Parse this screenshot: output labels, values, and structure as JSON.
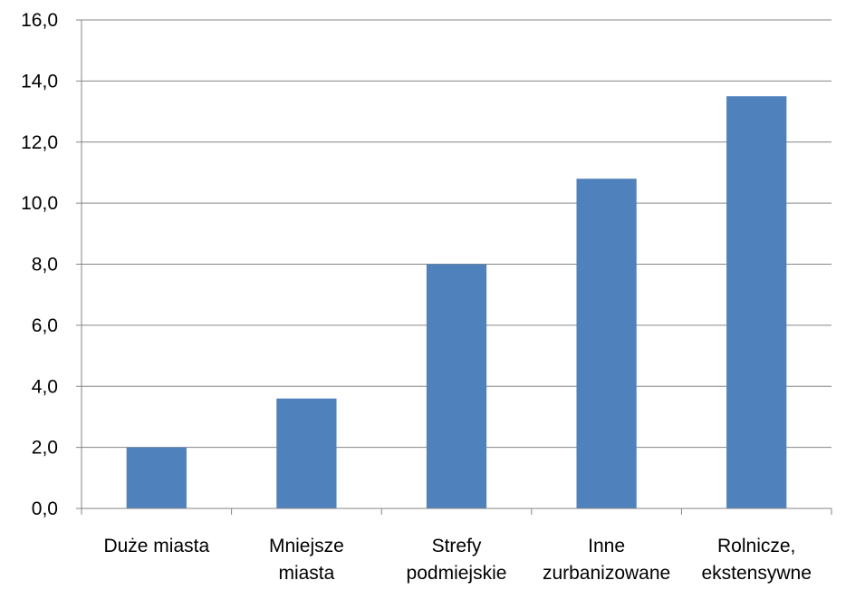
{
  "chart_data": {
    "type": "bar",
    "categories": [
      [
        "Duże miasta"
      ],
      [
        "Mniejsze",
        "miasta"
      ],
      [
        "Strefy",
        "podmiejskie"
      ],
      [
        "Inne",
        "zurbanizowane"
      ],
      [
        "Rolnicze,",
        "ekstensywne"
      ]
    ],
    "values": [
      2.0,
      3.6,
      8.0,
      10.8,
      13.5
    ],
    "ylim": [
      0,
      16
    ],
    "yticks": [
      "0,0",
      "2,0",
      "4,0",
      "6,0",
      "8,0",
      "10,0",
      "12,0",
      "14,0",
      "16,0"
    ],
    "title": "",
    "xlabel": "",
    "ylabel": "",
    "grid": true,
    "legend": "none",
    "colors": {
      "bar": "#4F81BD",
      "grid": "#868686",
      "axis": "#868686"
    }
  }
}
